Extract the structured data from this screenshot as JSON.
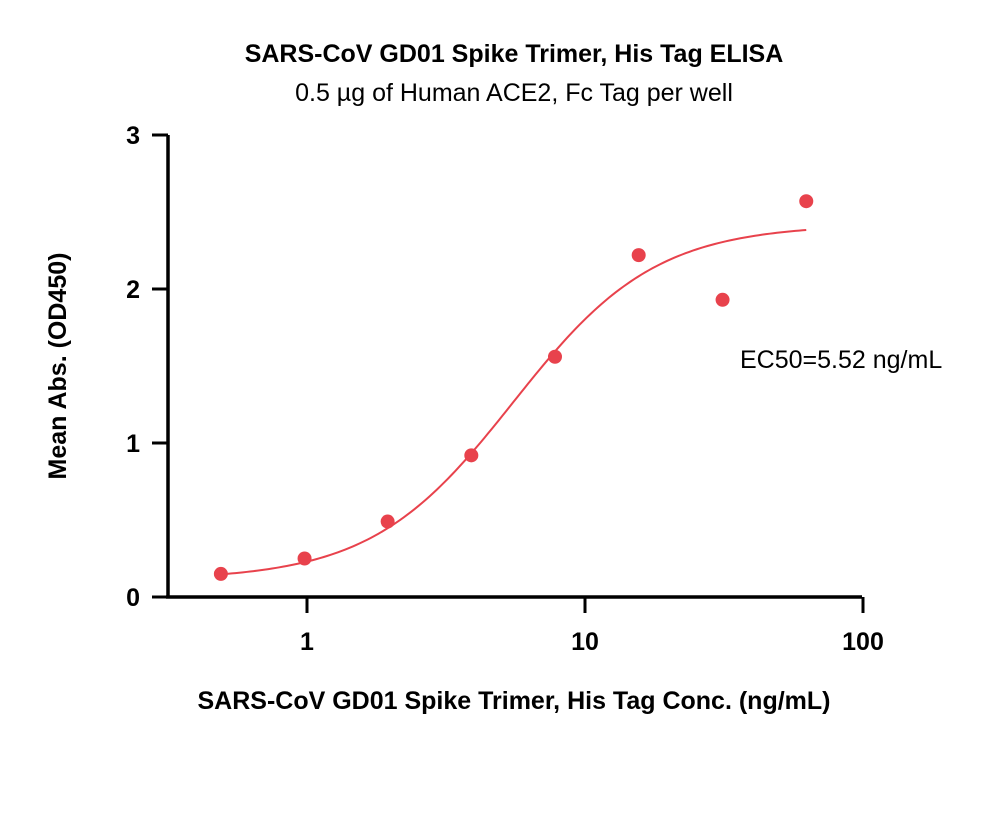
{
  "chart_data": {
    "type": "scatter",
    "title": "SARS-CoV GD01 Spike Trimer, His Tag ELISA",
    "subtitle": "0.5 µg of Human ACE2, Fc Tag per well",
    "xlabel": "SARS-CoV GD01 Spike Trimer, His Tag Conc. (ng/mL)",
    "ylabel": "Mean Abs. (OD450)",
    "x_scale": "log",
    "xlim": [
      0.4,
      100
    ],
    "ylim": [
      0,
      3
    ],
    "x_ticks": [
      {
        "value": 1,
        "label": "1"
      },
      {
        "value": 10,
        "label": "10"
      },
      {
        "value": 100,
        "label": "100"
      }
    ],
    "y_ticks": [
      {
        "value": 0,
        "label": "0"
      },
      {
        "value": 1,
        "label": "1"
      },
      {
        "value": 2,
        "label": "2"
      },
      {
        "value": 3,
        "label": "3"
      }
    ],
    "grid": false,
    "series": [
      {
        "x": [
          0.49,
          0.98,
          1.95,
          3.9,
          7.8,
          15.6,
          31.25,
          62.5
        ],
        "y": [
          0.15,
          0.25,
          0.49,
          0.92,
          1.56,
          2.22,
          1.93,
          2.57
        ],
        "color": "#e8424c"
      }
    ],
    "fit_curve": {
      "model": "4PL",
      "bottom": 0.11,
      "top": 2.42,
      "ec50": 5.52,
      "hill": 1.7,
      "x_range": [
        0.49,
        62.5
      ],
      "color": "#e8424c"
    },
    "annotations": [
      {
        "text": "EC50=5.52 ng/mL"
      }
    ]
  }
}
